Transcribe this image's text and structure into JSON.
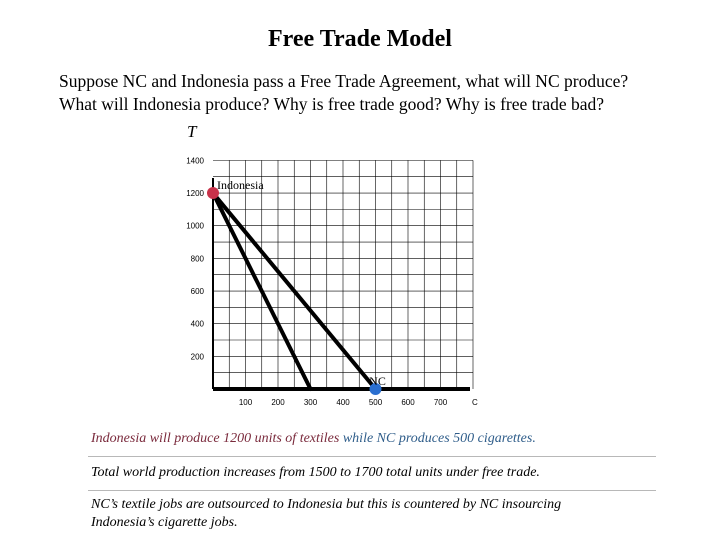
{
  "title": "Free Trade Model",
  "prompt": {
    "line1": "Suppose NC and Indonesia pass a Free Trade Agreement, what will NC produce?",
    "line2": "What will Indonesia produce?  Why is free trade good?  Why is free trade bad?"
  },
  "chart_data": {
    "type": "line",
    "ylabel": "T",
    "xlabel": "C",
    "xlim": [
      0,
      800
    ],
    "ylim": [
      0,
      1400
    ],
    "x_ticks": [
      100,
      200,
      300,
      400,
      500,
      600,
      700
    ],
    "y_ticks": [
      200,
      400,
      600,
      800,
      1000,
      1200,
      1400
    ],
    "grid": true,
    "series": [
      {
        "name": "Indonesia",
        "x": [
          0,
          300
        ],
        "y": [
          1200,
          0
        ]
      },
      {
        "name": "NC",
        "x": [
          0,
          500
        ],
        "y": [
          1200,
          0
        ]
      }
    ],
    "points": [
      {
        "label": "Indonesia",
        "x": 0,
        "y": 1200,
        "color": "#c8324a"
      },
      {
        "label": "NC",
        "x": 500,
        "y": 0,
        "color": "#2a6fd0"
      }
    ]
  },
  "notes": {
    "n1_part1": "Indonesia will produce 1200 units of textiles ",
    "n1_part2": "while NC produces 500 cigarettes.",
    "n2": "Total world production increases from 1500 to 1700 total units under free trade.",
    "n3_line1": "NC’s textile jobs are outsourced to Indonesia but this is countered by NC insourcing",
    "n3_line2": "Indonesia’s cigarette jobs."
  }
}
